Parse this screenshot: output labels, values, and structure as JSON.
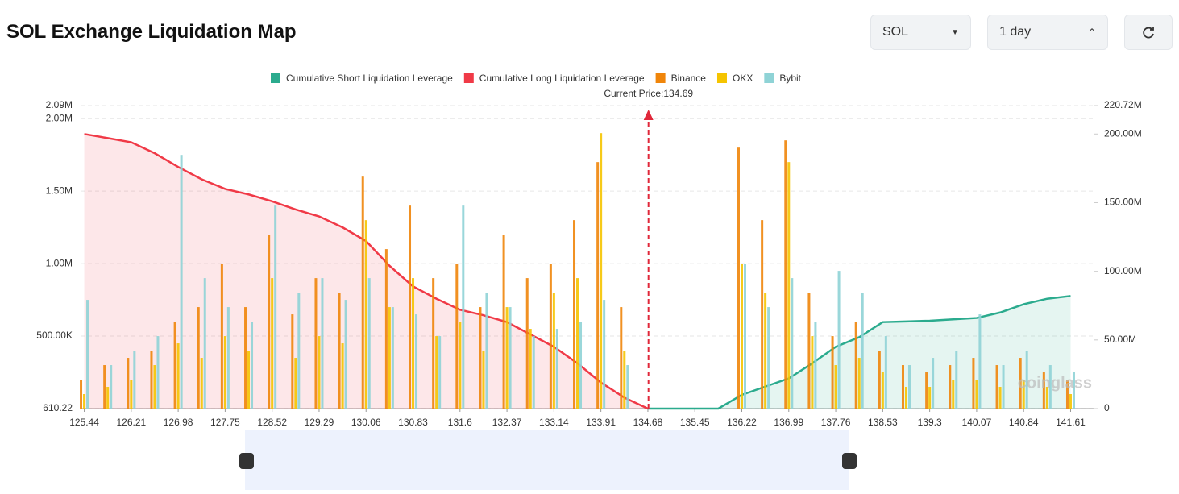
{
  "header": {
    "title": "SOL Exchange Liquidation Map",
    "symbol_select": "SOL",
    "range_select": "1 day"
  },
  "chart_data": {
    "type": "bar",
    "watermark": "coinglass",
    "current_price": 134.69,
    "current_price_label": "Current Price:134.69",
    "x": [
      125.44,
      125.825,
      126.21,
      126.595,
      126.98,
      127.365,
      127.75,
      128.135,
      128.52,
      128.905,
      129.29,
      129.675,
      130.06,
      130.445,
      130.83,
      131.215,
      131.6,
      131.985,
      132.37,
      132.755,
      133.14,
      133.525,
      133.91,
      134.295,
      134.68,
      135.065,
      135.45,
      135.835,
      136.22,
      136.605,
      136.99,
      137.375,
      137.76,
      138.145,
      138.53,
      138.915,
      139.3,
      139.685,
      140.07,
      140.455,
      140.84,
      141.225,
      141.61
    ],
    "xlim": [
      125.38,
      142.0
    ],
    "xticks": [
      125.44,
      126.21,
      126.98,
      127.75,
      128.52,
      129.29,
      130.06,
      130.83,
      131.6,
      132.37,
      133.14,
      133.91,
      134.68,
      135.45,
      136.22,
      136.99,
      137.76,
      138.53,
      139.3,
      140.07,
      140.84,
      141.61
    ],
    "ylim": [
      0,
      2090000
    ],
    "yticks": [
      610.22,
      {
        "value": 500000,
        "label": "500.00K"
      },
      {
        "value": 1000000,
        "label": "1.00M"
      },
      {
        "value": 1500000,
        "label": "1.50M"
      },
      {
        "value": 2000000,
        "label": "2.00M"
      },
      {
        "value": 2090000,
        "label": "2.09M"
      }
    ],
    "y2lim": [
      0,
      220720000
    ],
    "y2ticks": [
      0,
      {
        "value": 50000000,
        "label": "50.00M"
      },
      {
        "value": 100000000,
        "label": "100.00M"
      },
      {
        "value": 150000000,
        "label": "150.00M"
      },
      {
        "value": 200000000,
        "label": "200.00M"
      },
      {
        "value": 220720000,
        "label": "220.72M"
      }
    ],
    "grid": true,
    "series": [
      {
        "name": "Cumulative Short Liquidation Leverage",
        "color": "#2bab8e",
        "kind": "line",
        "axis": "y2",
        "values": [
          null,
          null,
          null,
          null,
          null,
          null,
          null,
          null,
          null,
          null,
          null,
          null,
          null,
          null,
          null,
          null,
          null,
          null,
          null,
          null,
          null,
          null,
          null,
          null,
          0,
          0,
          0,
          0,
          10000000,
          16000000,
          22000000,
          33000000,
          45000000,
          52000000,
          63000000,
          63500000,
          64000000,
          65000000,
          66000000,
          70000000,
          76000000,
          80000000,
          82000000
        ]
      },
      {
        "name": "Cumulative Long Liquidation Leverage",
        "color": "#f03a47",
        "kind": "line",
        "axis": "y2",
        "values": [
          200000000,
          197000000,
          194000000,
          186000000,
          176000000,
          167000000,
          160000000,
          156000000,
          151000000,
          145000000,
          140000000,
          132000000,
          122000000,
          104000000,
          89000000,
          80000000,
          72000000,
          68000000,
          63000000,
          54000000,
          45000000,
          33000000,
          19000000,
          8000000,
          0,
          null,
          null,
          null,
          null,
          null,
          null,
          null,
          null,
          null,
          null,
          null,
          null,
          null,
          null,
          null,
          null,
          null,
          null
        ]
      },
      {
        "name": "Binance",
        "color": "#f0850a",
        "kind": "bar",
        "values": [
          200000,
          300000,
          350000,
          400000,
          600000,
          700000,
          1000000,
          700000,
          1200000,
          650000,
          900000,
          800000,
          1600000,
          1100000,
          1400000,
          900000,
          1000000,
          700000,
          1200000,
          900000,
          1000000,
          1300000,
          1700000,
          700000,
          0,
          0,
          0,
          0,
          1800000,
          1300000,
          1850000,
          800000,
          500000,
          600000,
          400000,
          300000,
          250000,
          300000,
          350000,
          300000,
          350000,
          250000,
          200000
        ]
      },
      {
        "name": "OKX",
        "color": "#f5c400",
        "kind": "bar",
        "values": [
          100000,
          150000,
          200000,
          300000,
          450000,
          350000,
          500000,
          400000,
          900000,
          350000,
          500000,
          450000,
          1300000,
          700000,
          900000,
          500000,
          600000,
          400000,
          700000,
          550000,
          800000,
          900000,
          1900000,
          400000,
          0,
          0,
          0,
          0,
          1000000,
          800000,
          1700000,
          500000,
          300000,
          350000,
          250000,
          150000,
          150000,
          200000,
          200000,
          150000,
          200000,
          150000,
          100000
        ]
      },
      {
        "name": "Bybit",
        "color": "#8fd3d6",
        "kind": "bar",
        "values": [
          750000,
          300000,
          400000,
          500000,
          1750000,
          900000,
          700000,
          600000,
          1400000,
          800000,
          900000,
          750000,
          900000,
          700000,
          650000,
          500000,
          1400000,
          800000,
          700000,
          500000,
          550000,
          600000,
          750000,
          300000,
          0,
          0,
          0,
          0,
          1000000,
          700000,
          900000,
          600000,
          950000,
          800000,
          500000,
          300000,
          350000,
          400000,
          650000,
          300000,
          400000,
          300000,
          250000
        ]
      }
    ]
  }
}
